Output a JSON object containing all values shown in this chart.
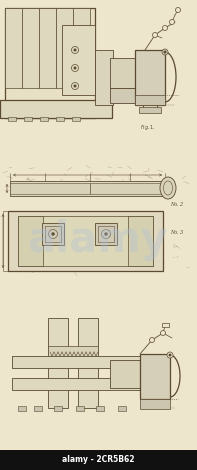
{
  "bg_color": "#ede5cc",
  "paper_color": "#ede5cc",
  "line_color": "#5a4a30",
  "line_color2": "#7a6a50",
  "fig_width": 1.97,
  "fig_height": 4.7,
  "dpi": 100,
  "alamy_text": "alamy - 2CR5B62",
  "alamy_text_color": "#ffffff",
  "alamy_bg": "#111111",
  "watermark_color": "#b0c0d8"
}
